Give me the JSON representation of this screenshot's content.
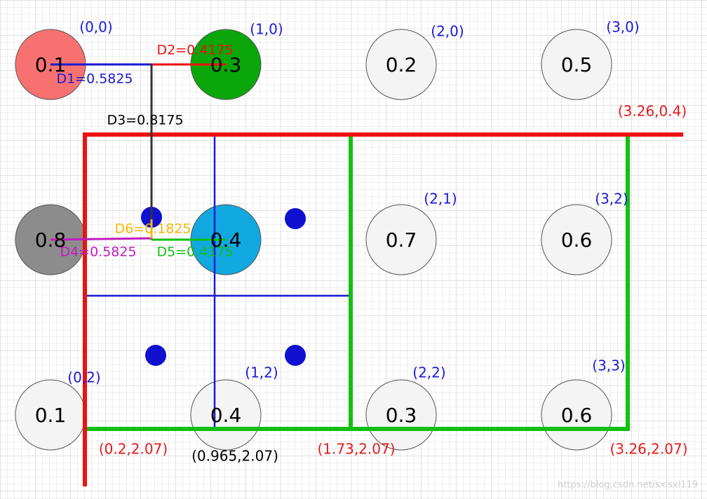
{
  "nodes": [
    {
      "value": "0.1",
      "coord": "(0,0)"
    },
    {
      "value": "0.3",
      "coord": "(1,0)"
    },
    {
      "value": "0.2",
      "coord": "(2,0)"
    },
    {
      "value": "0.5",
      "coord": "(3,0)"
    },
    {
      "value": "0.8"
    },
    {
      "value": "0.4"
    },
    {
      "value": "0.7",
      "coord": "(2,1)"
    },
    {
      "value": "0.6",
      "coord": "(3,2)"
    },
    {
      "value": "0.1",
      "coord": "(0,2)"
    },
    {
      "value": "0.4",
      "coord": "(1,2)"
    },
    {
      "value": "0.3",
      "coord": "(2,2)"
    },
    {
      "value": "0.6",
      "coord": "(3,3)"
    }
  ],
  "corners": [
    "(3.26,0.4)",
    "(0.2,2.07)",
    "(0.965,2.07)",
    "(1.73,2.07)",
    "(3.26,2.07)"
  ],
  "distances": [
    "D1=0.5825",
    "D2=0.4175",
    "D3=0.8175",
    "D4=0.5825",
    "D5=0.4175",
    "D6=0.1825"
  ],
  "watermark": "https://blog.csdn.net/sxlsxl119"
}
